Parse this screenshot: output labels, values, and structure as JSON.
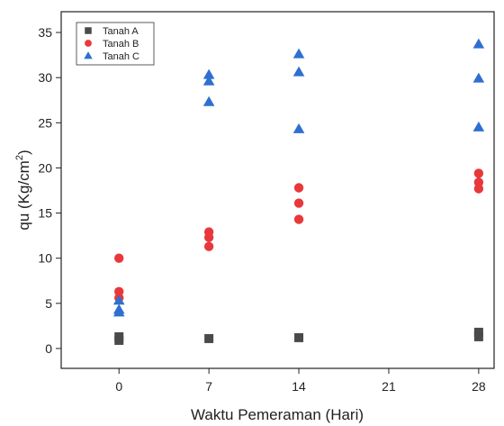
{
  "chart_data": {
    "type": "scatter",
    "xlabel": "Waktu Pemeraman (Hari)",
    "ylabel": {
      "base": "qu (Kg/cm",
      "sup": "2",
      "end": ")"
    },
    "xlim": [
      -4.5,
      29.2
    ],
    "ylim": [
      -2.2,
      37.3
    ],
    "x_ticks": [
      0,
      7,
      14,
      21,
      28
    ],
    "y_ticks": [
      0,
      5,
      10,
      15,
      20,
      25,
      30,
      35
    ],
    "legend_position": "top-left",
    "series": [
      {
        "name": "Tanah A",
        "marker": "square",
        "color": "#4a4a4a",
        "points": [
          {
            "x": 0,
            "y": 0.9
          },
          {
            "x": 0,
            "y": 1.3
          },
          {
            "x": 7,
            "y": 1.1
          },
          {
            "x": 14,
            "y": 1.2
          },
          {
            "x": 28,
            "y": 1.3
          },
          {
            "x": 28,
            "y": 1.8
          }
        ]
      },
      {
        "name": "Tanah B",
        "marker": "circle",
        "color": "#e8383b",
        "points": [
          {
            "x": 0,
            "y": 10.0
          },
          {
            "x": 0,
            "y": 6.3
          },
          {
            "x": 0,
            "y": 5.6
          },
          {
            "x": 7,
            "y": 12.9
          },
          {
            "x": 7,
            "y": 12.3
          },
          {
            "x": 7,
            "y": 11.3
          },
          {
            "x": 14,
            "y": 17.8
          },
          {
            "x": 14,
            "y": 16.1
          },
          {
            "x": 14,
            "y": 14.3
          },
          {
            "x": 28,
            "y": 19.4
          },
          {
            "x": 28,
            "y": 18.4
          },
          {
            "x": 28,
            "y": 17.7
          }
        ]
      },
      {
        "name": "Tanah C",
        "marker": "triangle",
        "color": "#2f6fd0",
        "points": [
          {
            "x": 0,
            "y": 5.3
          },
          {
            "x": 0,
            "y": 4.3
          },
          {
            "x": 0,
            "y": 4.0
          },
          {
            "x": 7,
            "y": 30.3
          },
          {
            "x": 7,
            "y": 29.6
          },
          {
            "x": 7,
            "y": 27.3
          },
          {
            "x": 14,
            "y": 32.6
          },
          {
            "x": 14,
            "y": 30.6
          },
          {
            "x": 14,
            "y": 24.3
          },
          {
            "x": 28,
            "y": 33.7
          },
          {
            "x": 28,
            "y": 29.9
          },
          {
            "x": 28,
            "y": 24.5
          }
        ]
      }
    ]
  }
}
